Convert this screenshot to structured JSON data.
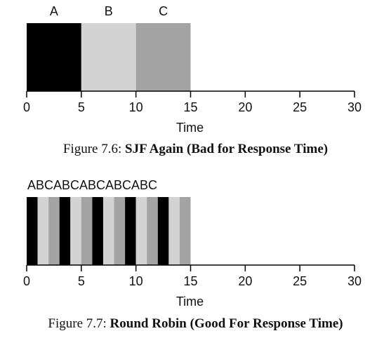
{
  "colors": {
    "A": "#000000",
    "B": "#d3d3d3",
    "C": "#a3a3a3",
    "axis": "#000000"
  },
  "chart_data": [
    {
      "type": "gantt",
      "top_labels": [
        "A",
        "B",
        "C"
      ],
      "segments": [
        {
          "job": "A",
          "start": 0,
          "end": 5
        },
        {
          "job": "B",
          "start": 5,
          "end": 10
        },
        {
          "job": "C",
          "start": 10,
          "end": 15
        }
      ],
      "xlim": [
        0,
        30
      ],
      "xticks": [
        0,
        5,
        10,
        15,
        20,
        25,
        30
      ],
      "xlabel": "Time",
      "caption": {
        "prefix": "Figure 7.6: ",
        "title": "SJF Again (Bad for Response Time)"
      }
    },
    {
      "type": "gantt",
      "sequence_label": "ABCABCABCABCABC",
      "segments": [
        {
          "job": "A",
          "start": 0,
          "end": 1
        },
        {
          "job": "B",
          "start": 1,
          "end": 2
        },
        {
          "job": "C",
          "start": 2,
          "end": 3
        },
        {
          "job": "A",
          "start": 3,
          "end": 4
        },
        {
          "job": "B",
          "start": 4,
          "end": 5
        },
        {
          "job": "C",
          "start": 5,
          "end": 6
        },
        {
          "job": "A",
          "start": 6,
          "end": 7
        },
        {
          "job": "B",
          "start": 7,
          "end": 8
        },
        {
          "job": "C",
          "start": 8,
          "end": 9
        },
        {
          "job": "A",
          "start": 9,
          "end": 10
        },
        {
          "job": "B",
          "start": 10,
          "end": 11
        },
        {
          "job": "C",
          "start": 11,
          "end": 12
        },
        {
          "job": "A",
          "start": 12,
          "end": 13
        },
        {
          "job": "B",
          "start": 13,
          "end": 14
        },
        {
          "job": "C",
          "start": 14,
          "end": 15
        }
      ],
      "xlim": [
        0,
        30
      ],
      "xticks": [
        0,
        5,
        10,
        15,
        20,
        25,
        30
      ],
      "xlabel": "Time",
      "caption": {
        "prefix": "Figure 7.7: ",
        "title": "Round Robin (Good For Response Time)"
      }
    }
  ]
}
